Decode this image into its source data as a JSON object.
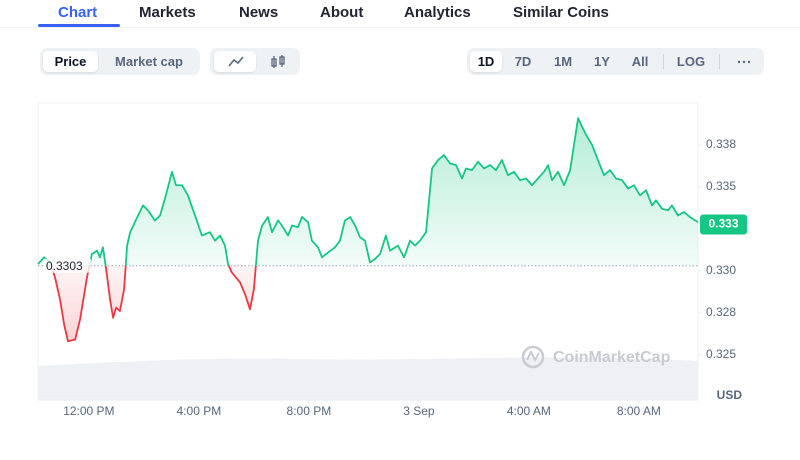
{
  "tabs": [
    "Chart",
    "Markets",
    "News",
    "About",
    "Analytics",
    "Similar Coins"
  ],
  "metric_toggle": [
    "Price",
    "Market cap"
  ],
  "ranges": [
    "1D",
    "7D",
    "1M",
    "1Y",
    "All",
    "LOG"
  ],
  "chart_data": {
    "type": "line",
    "x": [
      10.15,
      10.37,
      10.59,
      10.77,
      10.95,
      11.1,
      11.24,
      11.5,
      11.68,
      11.93,
      12.11,
      12.3,
      12.4,
      12.51,
      12.62,
      12.77,
      12.88,
      12.99,
      13.13,
      13.28,
      13.39,
      13.5,
      13.79,
      13.97,
      14.15,
      14.4,
      14.59,
      14.8,
      15.02,
      15.17,
      15.39,
      15.6,
      15.86,
      16.11,
      16.4,
      16.59,
      16.77,
      16.95,
      17.06,
      17.2,
      17.5,
      17.68,
      17.86,
      18.0,
      18.15,
      18.3,
      18.51,
      18.66,
      18.88,
      19.02,
      19.24,
      19.39,
      19.6,
      19.75,
      19.97,
      20.11,
      20.33,
      20.48,
      20.7,
      20.95,
      21.13,
      21.31,
      21.5,
      21.68,
      21.86,
      22.04,
      22.22,
      22.4,
      22.59,
      22.8,
      22.95,
      23.24,
      23.46,
      23.68,
      23.86,
      24.04,
      24.26,
      24.48,
      24.7,
      24.91,
      25.13,
      25.35,
      25.57,
      25.71,
      25.93,
      26.15,
      26.37,
      26.59,
      26.8,
      27.02,
      27.24,
      27.46,
      27.68,
      27.9,
      28.11,
      28.33,
      28.55,
      28.7,
      28.84,
      29.06,
      29.28,
      29.5,
      29.64,
      29.79,
      29.93,
      30.08,
      30.3,
      30.51,
      30.73,
      30.95,
      31.17,
      31.39,
      31.61,
      31.82,
      32.04,
      32.26,
      32.48,
      32.62,
      32.84,
      33.06,
      33.2,
      33.42,
      33.64,
      33.86,
      34.15
    ],
    "values": [
      0.3304,
      0.3308,
      0.3305,
      0.3296,
      0.3283,
      0.3268,
      0.3258,
      0.3259,
      0.3271,
      0.3296,
      0.331,
      0.3312,
      0.3308,
      0.3314,
      0.3302,
      0.3283,
      0.3272,
      0.3278,
      0.3276,
      0.3289,
      0.3315,
      0.3323,
      0.3333,
      0.3339,
      0.3336,
      0.333,
      0.3333,
      0.3345,
      0.3359,
      0.3351,
      0.3351,
      0.3345,
      0.3333,
      0.3321,
      0.3323,
      0.3318,
      0.3321,
      0.3315,
      0.3304,
      0.3299,
      0.3293,
      0.3286,
      0.3277,
      0.3289,
      0.3318,
      0.3327,
      0.3332,
      0.3323,
      0.333,
      0.3327,
      0.3321,
      0.3327,
      0.3326,
      0.3332,
      0.3329,
      0.3318,
      0.3314,
      0.3308,
      0.3311,
      0.3314,
      0.3318,
      0.333,
      0.3332,
      0.3327,
      0.332,
      0.3318,
      0.3305,
      0.3307,
      0.331,
      0.3321,
      0.3312,
      0.3315,
      0.3308,
      0.3318,
      0.3315,
      0.3318,
      0.3323,
      0.3361,
      0.3366,
      0.3369,
      0.3364,
      0.3363,
      0.3355,
      0.3361,
      0.336,
      0.3365,
      0.3361,
      0.3363,
      0.336,
      0.3366,
      0.3357,
      0.3359,
      0.3354,
      0.3355,
      0.3351,
      0.3355,
      0.3359,
      0.3363,
      0.3354,
      0.3359,
      0.3351,
      0.336,
      0.3375,
      0.3391,
      0.3386,
      0.3381,
      0.3375,
      0.3366,
      0.3357,
      0.336,
      0.3355,
      0.3354,
      0.3349,
      0.3351,
      0.3345,
      0.3348,
      0.3339,
      0.3342,
      0.3337,
      0.3336,
      0.3339,
      0.3333,
      0.3335,
      0.3332,
      0.3329
    ],
    "baseline": 0.3303,
    "last_price": 0.333,
    "up_color": "#16c784",
    "down_color": "#ea3943",
    "xlim": [
      10.15,
      34.15
    ],
    "xticks": [
      {
        "value": 12,
        "label": "12:00 PM"
      },
      {
        "value": 16,
        "label": "4:00 PM"
      },
      {
        "value": 20,
        "label": "8:00 PM"
      },
      {
        "value": 24,
        "label": "3 Sep"
      },
      {
        "value": 28,
        "label": "4:00 AM"
      },
      {
        "value": 32,
        "label": "8:00 AM"
      }
    ],
    "ylim": [
      0.3223,
      0.34
    ],
    "yticks": [
      {
        "value": 0.3375,
        "label": "0.338"
      },
      0.335,
      {
        "value": 0.33,
        "label": "0.330"
      },
      {
        "value": 0.3275,
        "label": "0.328"
      },
      0.325
    ],
    "y_unit": "USD",
    "watermark": "CoinMarketCap",
    "grid": false
  }
}
